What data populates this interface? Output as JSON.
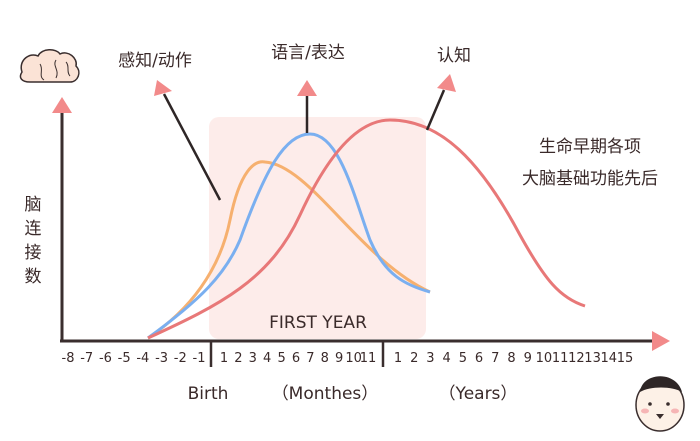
{
  "labels": {
    "sensory_motor": "感知/动作",
    "language": "语言/表达",
    "cognition": "认知",
    "note_line1": "生命早期各项",
    "note_line2": "大脑基础功能先后",
    "y_axis": [
      "脑",
      "连",
      "接",
      "数"
    ],
    "first_year": "FIRST YEAR",
    "birth": "Birth",
    "months": "（Monthes）",
    "years": "（Years）"
  },
  "ticks": {
    "prenatal": [
      "-8",
      "-7",
      "-6",
      "-5",
      "-4",
      "-3",
      "-2",
      "-1"
    ],
    "months": [
      "1",
      "2",
      "3",
      "4",
      "5",
      "6",
      "7",
      "8",
      "9",
      "10",
      "11"
    ],
    "years": [
      "1",
      "2",
      "3",
      "4",
      "5",
      "6",
      "7",
      "8",
      "9",
      "10",
      "11",
      "12",
      "13",
      "14",
      "15"
    ]
  },
  "colors": {
    "sensory_motor": "#f6b06f",
    "language": "#7aaff0",
    "cognition": "#e87878",
    "arrow": "#f28a8a",
    "highlight": "#fdecea",
    "axis": "#3a2e2e"
  },
  "icons": {
    "brain": "brain-icon",
    "baby": "baby-face-icon"
  }
}
